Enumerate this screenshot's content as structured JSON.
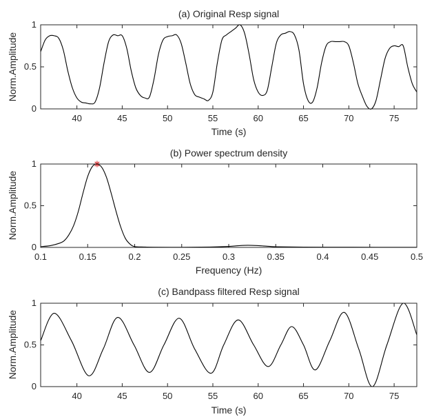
{
  "chart_data": [
    {
      "id": "a",
      "type": "line",
      "title": "(a) Original Resp signal",
      "xlabel": "Time (s)",
      "ylabel": "Norm.Amplitude",
      "xlim": [
        36,
        77.5
      ],
      "ylim": [
        0,
        1
      ],
      "xticks": [
        40,
        45,
        50,
        55,
        60,
        65,
        70,
        75
      ],
      "xtick_labels": [
        "40",
        "45",
        "50",
        "55",
        "60",
        "65",
        "70",
        "75"
      ],
      "yticks": [
        0,
        0.5,
        1
      ],
      "ytick_labels": [
        "0",
        "0.5",
        "1"
      ],
      "series": [
        {
          "color": "#000000",
          "x": [
            36.0,
            36.5,
            37.0,
            37.5,
            38.0,
            38.5,
            39.0,
            39.5,
            40.0,
            40.5,
            41.0,
            41.5,
            42.0,
            42.5,
            43.0,
            43.5,
            44.0,
            44.5,
            45.0,
            45.5,
            46.0,
            46.5,
            47.0,
            47.5,
            48.0,
            48.5,
            49.0,
            49.5,
            50.0,
            50.5,
            51.0,
            51.5,
            52.0,
            52.5,
            53.0,
            53.5,
            54.0,
            54.5,
            55.0,
            55.5,
            56.0,
            56.5,
            57.0,
            57.5,
            58.0,
            58.5,
            59.0,
            59.5,
            60.0,
            60.5,
            61.0,
            61.5,
            62.0,
            62.5,
            63.0,
            63.5,
            64.0,
            64.5,
            65.0,
            65.5,
            66.0,
            66.5,
            67.0,
            67.5,
            68.0,
            68.5,
            69.0,
            69.5,
            70.0,
            70.5,
            71.0,
            71.5,
            72.0,
            72.5,
            73.0,
            73.5,
            74.0,
            74.5,
            75.0,
            75.5,
            76.0,
            76.5,
            77.0,
            77.5
          ],
          "y": [
            0.68,
            0.82,
            0.87,
            0.87,
            0.84,
            0.7,
            0.45,
            0.25,
            0.13,
            0.08,
            0.07,
            0.06,
            0.08,
            0.25,
            0.55,
            0.8,
            0.88,
            0.87,
            0.87,
            0.72,
            0.45,
            0.25,
            0.16,
            0.13,
            0.14,
            0.35,
            0.65,
            0.82,
            0.86,
            0.87,
            0.88,
            0.78,
            0.55,
            0.3,
            0.17,
            0.14,
            0.12,
            0.1,
            0.2,
            0.55,
            0.82,
            0.88,
            0.92,
            0.96,
            1.0,
            0.9,
            0.65,
            0.35,
            0.2,
            0.16,
            0.22,
            0.5,
            0.78,
            0.88,
            0.9,
            0.92,
            0.88,
            0.7,
            0.3,
            0.1,
            0.08,
            0.25,
            0.55,
            0.75,
            0.8,
            0.8,
            0.8,
            0.8,
            0.75,
            0.55,
            0.3,
            0.15,
            0.03,
            0.0,
            0.1,
            0.35,
            0.6,
            0.72,
            0.75,
            0.74,
            0.75,
            0.5,
            0.3,
            0.2
          ]
        }
      ]
    },
    {
      "id": "b",
      "type": "line",
      "title": "(b) Power spectrum density",
      "xlabel": "Frequency (Hz)",
      "ylabel": "Norm.Amplitude",
      "xlim": [
        0.1,
        0.5
      ],
      "ylim": [
        0,
        1
      ],
      "xticks": [
        0.1,
        0.15,
        0.2,
        0.25,
        0.3,
        0.35,
        0.4,
        0.45,
        0.5
      ],
      "xtick_labels": [
        "0.1",
        "0.15",
        "0.2",
        "0.25",
        "0.3",
        "0.35",
        "0.4",
        "0.45",
        "0.5"
      ],
      "yticks": [
        0,
        0.5,
        1
      ],
      "ytick_labels": [
        "0",
        "0.5",
        "1"
      ],
      "peak": {
        "x": 0.16,
        "y": 1.0,
        "marker": "*",
        "color": "#d62728"
      },
      "series": [
        {
          "color": "#000000",
          "x": [
            0.1,
            0.11,
            0.12,
            0.125,
            0.13,
            0.135,
            0.14,
            0.145,
            0.15,
            0.155,
            0.16,
            0.165,
            0.17,
            0.175,
            0.18,
            0.185,
            0.19,
            0.195,
            0.2,
            0.21,
            0.22,
            0.25,
            0.28,
            0.3,
            0.31,
            0.32,
            0.33,
            0.34,
            0.35,
            0.38,
            0.42,
            0.46,
            0.5
          ],
          "y": [
            0.01,
            0.02,
            0.05,
            0.08,
            0.15,
            0.26,
            0.43,
            0.65,
            0.85,
            0.97,
            1.0,
            0.96,
            0.84,
            0.65,
            0.44,
            0.25,
            0.11,
            0.04,
            0.01,
            0.005,
            0.003,
            0.002,
            0.005,
            0.012,
            0.02,
            0.025,
            0.022,
            0.015,
            0.008,
            0.004,
            0.003,
            0.002,
            0.002
          ]
        }
      ]
    },
    {
      "id": "c",
      "type": "line",
      "title": "(c) Bandpass filtered Resp signal",
      "xlabel": "Time (s)",
      "ylabel": "Norm.Amplitude",
      "xlim": [
        36,
        77.5
      ],
      "ylim": [
        0,
        1
      ],
      "xticks": [
        40,
        45,
        50,
        55,
        60,
        65,
        70,
        75
      ],
      "xtick_labels": [
        "40",
        "45",
        "50",
        "55",
        "60",
        "65",
        "70",
        "75"
      ],
      "yticks": [
        0,
        0.5,
        1
      ],
      "ytick_labels": [
        "0",
        "0.5",
        "1"
      ],
      "series": [
        {
          "color": "#000000",
          "x": [
            36.0,
            37.5,
            39.4,
            41.3,
            42.9,
            44.5,
            46.3,
            48.0,
            49.6,
            51.3,
            53.0,
            54.8,
            56.2,
            57.8,
            59.5,
            61.1,
            62.5,
            63.7,
            65.0,
            66.3,
            67.9,
            69.5,
            71.1,
            72.6,
            74.2,
            76.0,
            77.5
          ],
          "y": [
            0.55,
            0.88,
            0.55,
            0.13,
            0.45,
            0.83,
            0.5,
            0.17,
            0.5,
            0.82,
            0.45,
            0.16,
            0.5,
            0.8,
            0.5,
            0.24,
            0.5,
            0.72,
            0.5,
            0.2,
            0.55,
            0.89,
            0.45,
            0.0,
            0.5,
            1.0,
            0.62
          ]
        }
      ]
    }
  ]
}
